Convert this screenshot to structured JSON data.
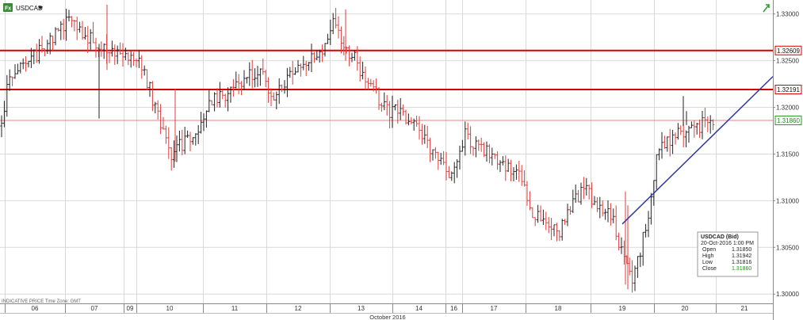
{
  "header": {
    "symbol": "USDCAD",
    "app_badge": "Fx",
    "dropdown_icon": "chevron-down-icon",
    "status_icon": "trend-arrow-icon"
  },
  "footer": {
    "note": "INDICATIVE PRICE  Time Zone: GMT"
  },
  "colors": {
    "up_bar": "#222222",
    "down_bar": "#e23b3b",
    "resistance": "#d60000",
    "close_line": "#e88080",
    "trendline": "#2e3a9a",
    "grid": "#d9d9d9"
  },
  "chart_data": {
    "type": "ohlc",
    "title": "",
    "xlabel": "October 2016",
    "ylabel": "",
    "ylim": [
      1.299,
      1.3315
    ],
    "y_ticks": [
      "1.33000",
      "1.32500",
      "1.32000",
      "1.31500",
      "1.31000",
      "1.30500",
      "1.30000"
    ],
    "x_ticks": [
      "06",
      "07",
      "09",
      "10",
      "11",
      "12",
      "13",
      "14",
      "16",
      "17",
      "18",
      "19",
      "20",
      "21"
    ],
    "x_month_label": "October 2016",
    "grid": true,
    "price_labels": [
      {
        "value": 1.32609,
        "text": "1.32609",
        "kind": "resistance"
      },
      {
        "value": 1.32191,
        "text": "1.32191",
        "kind": "resistance"
      },
      {
        "value": 1.3186,
        "text": "1.31860",
        "kind": "last"
      }
    ],
    "trendline": [
      {
        "date": "2016-10-19",
        "price": 1.3075
      },
      {
        "date": "2016-10-21",
        "price": 1.3233
      }
    ],
    "anchors": [
      {
        "day": "05",
        "price": 1.318
      },
      {
        "day": "06",
        "price": 1.3225
      },
      {
        "day": "06",
        "price": 1.3258
      },
      {
        "day": "07",
        "price": 1.329
      },
      {
        "day": "07",
        "price": 1.324
      },
      {
        "day": "09",
        "price": 1.325
      },
      {
        "day": "10",
        "price": 1.3258
      },
      {
        "day": "10",
        "price": 1.315
      },
      {
        "day": "10",
        "price": 1.3175
      },
      {
        "day": "11",
        "price": 1.32
      },
      {
        "day": "11",
        "price": 1.3245
      },
      {
        "day": "12",
        "price": 1.321
      },
      {
        "day": "12",
        "price": 1.327
      },
      {
        "day": "13",
        "price": 1.329
      },
      {
        "day": "13",
        "price": 1.324
      },
      {
        "day": "13",
        "price": 1.319
      },
      {
        "day": "14",
        "price": 1.3205
      },
      {
        "day": "14",
        "price": 1.314
      },
      {
        "day": "16",
        "price": 1.312
      },
      {
        "day": "17",
        "price": 1.317
      },
      {
        "day": "17",
        "price": 1.3125
      },
      {
        "day": "18",
        "price": 1.309
      },
      {
        "day": "18",
        "price": 1.3065
      },
      {
        "day": "18",
        "price": 1.3125
      },
      {
        "day": "19",
        "price": 1.3095
      },
      {
        "day": "19",
        "price": 1.308
      },
      {
        "day": "19",
        "price": 1.301
      },
      {
        "day": "19",
        "price": 1.31
      },
      {
        "day": "20",
        "price": 1.3155
      },
      {
        "day": "20",
        "price": 1.3175
      },
      {
        "day": "20",
        "price": 1.3186
      }
    ],
    "info_box": {
      "title": "USDCAD (Bid)",
      "datetime": "20-Oct-2016 1:00 PM",
      "rows": [
        {
          "label": "Open",
          "value": "1.31850"
        },
        {
          "label": "High",
          "value": "1.31942"
        },
        {
          "label": "Low",
          "value": "1.31816"
        },
        {
          "label": "Close",
          "value": "1.31860"
        }
      ]
    }
  }
}
